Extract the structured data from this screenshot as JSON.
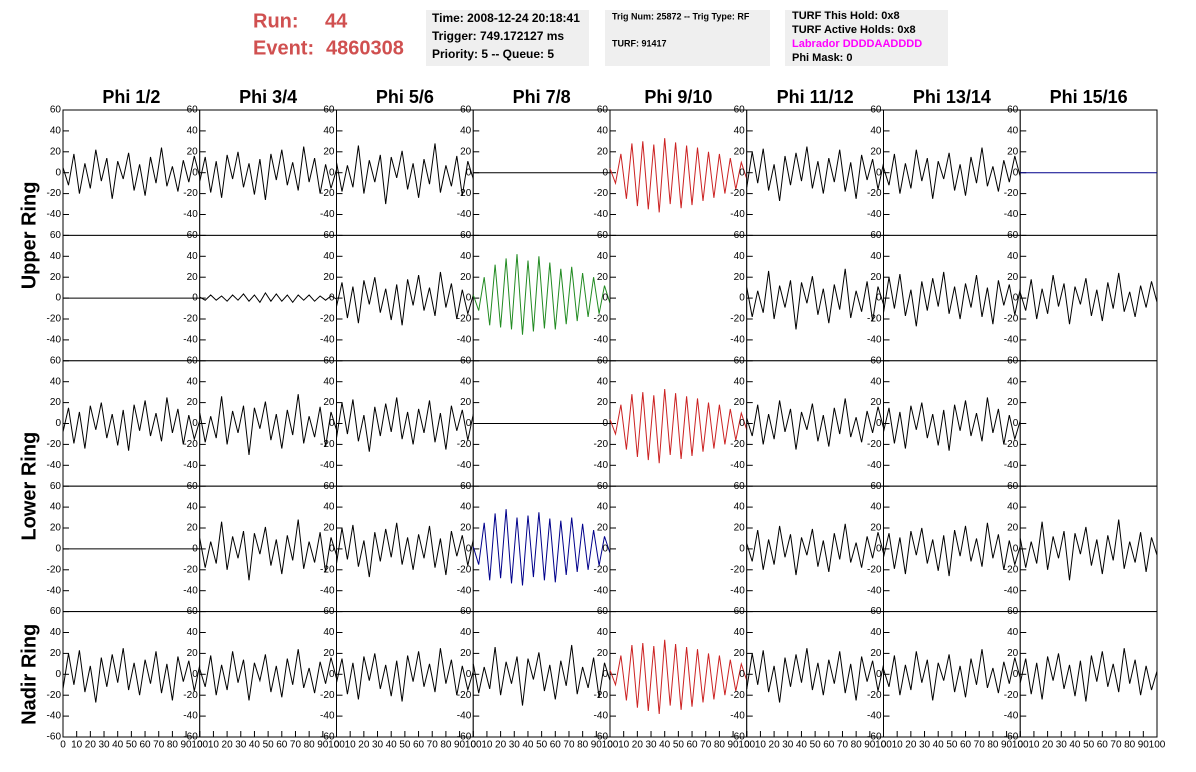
{
  "header": {
    "run_label": "Run:",
    "run": "44",
    "event_label": "Event:",
    "event": "4860308",
    "box1": [
      "Time: 2008-12-24 20:18:41",
      "Trigger: 749.172127 ms",
      "Priority: 5 -- Queue: 5"
    ],
    "box2": [
      "Trig Num: 25872 -- Trig Type: RF",
      "TURF: 91417"
    ],
    "box3": [
      "TURF This Hold: 0x8",
      "TURF Active Holds: 0x8",
      "Labrador DDDDAADDDD",
      "Phi Mask: 0"
    ]
  },
  "chart_data": {
    "type": "line",
    "columns": [
      "Phi 1/2",
      "Phi 3/4",
      "Phi 5/6",
      "Phi 7/8",
      "Phi 9/10",
      "Phi 11/12",
      "Phi 13/14",
      "Phi 15/16"
    ],
    "rings": [
      "Upper Ring",
      "Lower Ring",
      "Nadir Ring"
    ],
    "xlim": [
      0,
      100
    ],
    "xticks": [
      0,
      10,
      20,
      30,
      40,
      50,
      60,
      70,
      80,
      90,
      100
    ],
    "ylim": [
      -60,
      60
    ],
    "yticks": [
      -60,
      -40,
      -20,
      0,
      20,
      40,
      60
    ],
    "x": [
      0,
      4,
      8,
      12,
      16,
      20,
      24,
      28,
      32,
      36,
      40,
      44,
      48,
      52,
      56,
      60,
      64,
      68,
      72,
      76,
      80,
      84,
      88,
      92,
      96,
      100
    ],
    "series": [
      {
        "color": "#000000",
        "values": [
          5,
          -12,
          18,
          -20,
          9,
          -15,
          22,
          -8,
          14,
          -25,
          11,
          -6,
          19,
          -17,
          8,
          -22,
          15,
          -10,
          24,
          -13,
          6,
          -18,
          12,
          -9,
          16,
          -4
        ]
      },
      {
        "color": "#000000",
        "values": [
          -8,
          15,
          -19,
          11,
          -24,
          17,
          -6,
          20,
          -14,
          9,
          -21,
          13,
          -26,
          18,
          -7,
          22,
          -12,
          10,
          -17,
          25,
          -9,
          14,
          -20,
          8,
          -15,
          3
        ]
      },
      {
        "color": "#000000",
        "values": [
          10,
          -18,
          7,
          -14,
          26,
          -20,
          12,
          -9,
          17,
          -30,
          15,
          -5,
          21,
          -16,
          9,
          -24,
          13,
          -11,
          28,
          -19,
          7,
          -13,
          16,
          -22,
          11,
          -6
        ]
      },
      {
        "color": "#000000",
        "values": [
          0,
          0,
          0,
          0,
          0,
          0,
          0,
          0,
          0,
          0,
          0,
          0,
          0,
          0,
          0,
          0,
          0,
          0,
          0,
          0,
          0,
          0,
          0,
          0,
          0,
          0
        ]
      },
      {
        "color": "#cc2222",
        "values": [
          4,
          -10,
          18,
          -25,
          28,
          -32,
          30,
          -35,
          27,
          -38,
          33,
          -30,
          29,
          -34,
          26,
          -31,
          24,
          -27,
          20,
          -24,
          18,
          -20,
          14,
          -16,
          10,
          -6
        ]
      },
      {
        "color": "#000000",
        "values": [
          -14,
          20,
          -10,
          23,
          -17,
          8,
          -27,
          16,
          -12,
          19,
          -8,
          25,
          -15,
          11,
          -20,
          14,
          -9,
          22,
          -18,
          10,
          -25,
          17,
          -7,
          13,
          -16,
          9
        ]
      },
      {
        "color": "#000000",
        "values": [
          5,
          -12,
          18,
          -20,
          9,
          -15,
          22,
          -8,
          14,
          -25,
          11,
          -6,
          19,
          -17,
          8,
          -22,
          15,
          -10,
          24,
          -13,
          6,
          -18,
          12,
          -9,
          16,
          -4
        ]
      },
      {
        "color": "#00008b",
        "values": [
          0,
          0,
          0,
          0,
          0,
          0,
          0,
          0,
          0,
          0,
          0,
          0,
          0,
          0,
          0,
          0,
          0,
          0,
          0,
          0,
          0,
          0,
          0,
          0,
          0,
          0
        ]
      },
      {
        "color": "#000000",
        "values": [
          0,
          0,
          0,
          0,
          0,
          0,
          0,
          0,
          0,
          0,
          0,
          0,
          0,
          0,
          0,
          0,
          0,
          0,
          0,
          0,
          0,
          0,
          0,
          0,
          0,
          0
        ]
      },
      {
        "color": "#000000",
        "values": [
          1,
          -2,
          3,
          -2,
          2,
          -3,
          3,
          -2,
          4,
          -3,
          3,
          -4,
          5,
          -3,
          4,
          -3,
          3,
          -4,
          3,
          -2,
          3,
          -3,
          2,
          -2,
          2,
          -1
        ]
      },
      {
        "color": "#000000",
        "values": [
          -8,
          15,
          -19,
          11,
          -24,
          17,
          -6,
          20,
          -14,
          9,
          -21,
          13,
          -26,
          18,
          -7,
          22,
          -12,
          10,
          -17,
          25,
          -9,
          14,
          -20,
          8,
          -15,
          3
        ]
      },
      {
        "color": "#228b22",
        "values": [
          3,
          -12,
          20,
          -26,
          32,
          -28,
          38,
          -30,
          42,
          -35,
          36,
          -32,
          40,
          -29,
          34,
          -30,
          28,
          -25,
          30,
          -22,
          24,
          -18,
          20,
          -15,
          12,
          -5
        ]
      },
      {
        "color": "#000000",
        "values": [
          null,
          null,
          null,
          null,
          null,
          null,
          null,
          null,
          null,
          null,
          null,
          null,
          null,
          null,
          null,
          null,
          null,
          null,
          null,
          null,
          null,
          null,
          null,
          null,
          null,
          null
        ]
      },
      {
        "color": "#000000",
        "values": [
          10,
          -18,
          7,
          -14,
          26,
          -20,
          12,
          -9,
          17,
          -30,
          15,
          -5,
          21,
          -16,
          9,
          -24,
          13,
          -11,
          28,
          -19,
          7,
          -13,
          16,
          -22,
          11,
          -6
        ]
      },
      {
        "color": "#000000",
        "values": [
          -14,
          20,
          -10,
          23,
          -17,
          8,
          -27,
          16,
          -12,
          19,
          -8,
          25,
          -15,
          11,
          -20,
          14,
          -9,
          22,
          -18,
          10,
          -25,
          17,
          -7,
          13,
          -16,
          9
        ]
      },
      {
        "color": "#000000",
        "values": [
          5,
          -12,
          18,
          -20,
          9,
          -15,
          22,
          -8,
          14,
          -25,
          11,
          -6,
          19,
          -17,
          8,
          -22,
          15,
          -10,
          24,
          -13,
          6,
          -18,
          12,
          -9,
          16,
          -4
        ]
      },
      {
        "color": "#000000",
        "values": [
          -8,
          15,
          -19,
          11,
          -24,
          17,
          -6,
          20,
          -14,
          9,
          -21,
          13,
          -26,
          18,
          -7,
          22,
          -12,
          10,
          -17,
          25,
          -9,
          14,
          -20,
          8,
          -15,
          3
        ]
      },
      {
        "color": "#000000",
        "values": [
          10,
          -18,
          7,
          -14,
          26,
          -20,
          12,
          -9,
          17,
          -30,
          15,
          -5,
          21,
          -16,
          9,
          -24,
          13,
          -11,
          28,
          -19,
          7,
          -13,
          16,
          -22,
          11,
          -6
        ]
      },
      {
        "color": "#000000",
        "values": [
          -14,
          20,
          -10,
          23,
          -17,
          8,
          -27,
          16,
          -12,
          19,
          -8,
          25,
          -15,
          11,
          -20,
          14,
          -9,
          22,
          -18,
          10,
          -25,
          17,
          -7,
          13,
          -16,
          9
        ]
      },
      {
        "color": "#000000",
        "values": [
          0,
          0,
          0,
          0,
          0,
          0,
          0,
          0,
          0,
          0,
          0,
          0,
          0,
          0,
          0,
          0,
          0,
          0,
          0,
          0,
          0,
          0,
          0,
          0,
          0,
          0
        ]
      },
      {
        "color": "#cc2222",
        "values": [
          4,
          -10,
          18,
          -25,
          28,
          -32,
          30,
          -35,
          27,
          -38,
          33,
          -30,
          29,
          -34,
          26,
          -31,
          24,
          -27,
          20,
          -24,
          18,
          -20,
          14,
          -16,
          10,
          -6
        ]
      },
      {
        "color": "#000000",
        "values": [
          5,
          -12,
          18,
          -20,
          9,
          -15,
          22,
          -8,
          14,
          -25,
          11,
          -6,
          19,
          -17,
          8,
          -22,
          15,
          -10,
          24,
          -13,
          6,
          -18,
          12,
          -9,
          16,
          -4
        ]
      },
      {
        "color": "#000000",
        "values": [
          -8,
          15,
          -19,
          11,
          -24,
          17,
          -6,
          20,
          -14,
          9,
          -21,
          13,
          -26,
          18,
          -7,
          22,
          -12,
          10,
          -17,
          25,
          -9,
          14,
          -20,
          8,
          -15,
          3
        ]
      },
      {
        "color": "#000000",
        "values": [
          null,
          null,
          null,
          null,
          null,
          null,
          null,
          null,
          null,
          null,
          null,
          null,
          null,
          null,
          null,
          null,
          null,
          null,
          null,
          null,
          null,
          null,
          null,
          null,
          null,
          null
        ]
      },
      {
        "color": "#000000",
        "values": [
          0,
          0,
          0,
          0,
          0,
          0,
          0,
          0,
          0,
          0,
          0,
          0,
          0,
          0,
          0,
          0,
          0,
          0,
          0,
          0,
          0,
          0,
          0,
          0,
          0,
          0
        ]
      },
      {
        "color": "#000000",
        "values": [
          10,
          -18,
          7,
          -14,
          26,
          -20,
          12,
          -9,
          17,
          -30,
          15,
          -5,
          21,
          -16,
          9,
          -24,
          13,
          -11,
          28,
          -19,
          7,
          -13,
          16,
          -22,
          11,
          -6
        ]
      },
      {
        "color": "#000000",
        "values": [
          -14,
          20,
          -10,
          23,
          -17,
          8,
          -27,
          16,
          -12,
          19,
          -8,
          25,
          -15,
          11,
          -20,
          14,
          -9,
          22,
          -18,
          10,
          -25,
          17,
          -7,
          13,
          -16,
          9
        ]
      },
      {
        "color": "#00008b",
        "values": [
          2,
          -15,
          25,
          -30,
          34,
          -28,
          38,
          -33,
          30,
          -35,
          32,
          -27,
          35,
          -30,
          29,
          -32,
          27,
          -25,
          30,
          -22,
          24,
          -20,
          18,
          -16,
          12,
          -4
        ]
      },
      {
        "color": "#000000",
        "values": [
          null,
          null,
          null,
          null,
          null,
          null,
          null,
          null,
          null,
          null,
          null,
          null,
          null,
          null,
          null,
          null,
          null,
          null,
          null,
          null,
          null,
          null,
          null,
          null,
          null,
          null
        ]
      },
      {
        "color": "#000000",
        "values": [
          5,
          -12,
          18,
          -20,
          9,
          -15,
          22,
          -8,
          14,
          -25,
          11,
          -6,
          19,
          -17,
          8,
          -22,
          15,
          -10,
          24,
          -13,
          6,
          -18,
          12,
          -9,
          16,
          -4
        ]
      },
      {
        "color": "#000000",
        "values": [
          -8,
          15,
          -19,
          11,
          -24,
          17,
          -6,
          20,
          -14,
          9,
          -21,
          13,
          -26,
          18,
          -7,
          22,
          -12,
          10,
          -17,
          25,
          -9,
          14,
          -20,
          8,
          -15,
          3
        ]
      },
      {
        "color": "#000000",
        "values": [
          10,
          -18,
          7,
          -14,
          26,
          -20,
          12,
          -9,
          17,
          -30,
          15,
          -5,
          21,
          -16,
          9,
          -24,
          13,
          -11,
          28,
          -19,
          7,
          -13,
          16,
          -22,
          11,
          -6
        ]
      },
      {
        "color": "#000000",
        "values": [
          -14,
          20,
          -10,
          23,
          -17,
          8,
          -27,
          16,
          -12,
          19,
          -8,
          25,
          -15,
          11,
          -20,
          14,
          -9,
          22,
          -18,
          10,
          -25,
          17,
          -7,
          13,
          -16,
          9
        ]
      },
      {
        "color": "#000000",
        "values": [
          5,
          -12,
          18,
          -20,
          9,
          -15,
          22,
          -8,
          14,
          -25,
          11,
          -6,
          19,
          -17,
          8,
          -22,
          15,
          -10,
          24,
          -13,
          6,
          -18,
          12,
          -9,
          16,
          -4
        ]
      },
      {
        "color": "#000000",
        "values": [
          -8,
          15,
          -19,
          11,
          -24,
          17,
          -6,
          20,
          -14,
          9,
          -21,
          13,
          -26,
          18,
          -7,
          22,
          -12,
          10,
          -17,
          25,
          -9,
          14,
          -20,
          8,
          -15,
          3
        ]
      },
      {
        "color": "#000000",
        "values": [
          10,
          -18,
          7,
          -14,
          26,
          -20,
          12,
          -9,
          17,
          -30,
          15,
          -5,
          21,
          -16,
          9,
          -24,
          13,
          -11,
          28,
          -19,
          7,
          -13,
          16,
          -22,
          11,
          -6
        ]
      },
      {
        "color": "#cc2222",
        "values": [
          4,
          -10,
          18,
          -25,
          28,
          -32,
          30,
          -35,
          27,
          -38,
          33,
          -30,
          29,
          -34,
          26,
          -31,
          24,
          -27,
          20,
          -24,
          18,
          -20,
          14,
          -16,
          10,
          -6
        ]
      },
      {
        "color": "#000000",
        "values": [
          -14,
          20,
          -10,
          23,
          -17,
          8,
          -27,
          16,
          -12,
          19,
          -8,
          25,
          -15,
          11,
          -20,
          14,
          -9,
          22,
          -18,
          10,
          -25,
          17,
          -7,
          13,
          -16,
          9
        ]
      },
      {
        "color": "#000000",
        "values": [
          5,
          -12,
          18,
          -20,
          9,
          -15,
          22,
          -8,
          14,
          -25,
          11,
          -6,
          19,
          -17,
          8,
          -22,
          15,
          -10,
          24,
          -13,
          6,
          -18,
          12,
          -9,
          16,
          -4
        ]
      },
      {
        "color": "#000000",
        "values": [
          -8,
          15,
          -19,
          11,
          -24,
          17,
          -6,
          20,
          -14,
          9,
          -21,
          13,
          -26,
          18,
          -7,
          22,
          -12,
          10,
          -17,
          25,
          -9,
          14,
          -20,
          8,
          -15,
          3
        ]
      }
    ]
  }
}
